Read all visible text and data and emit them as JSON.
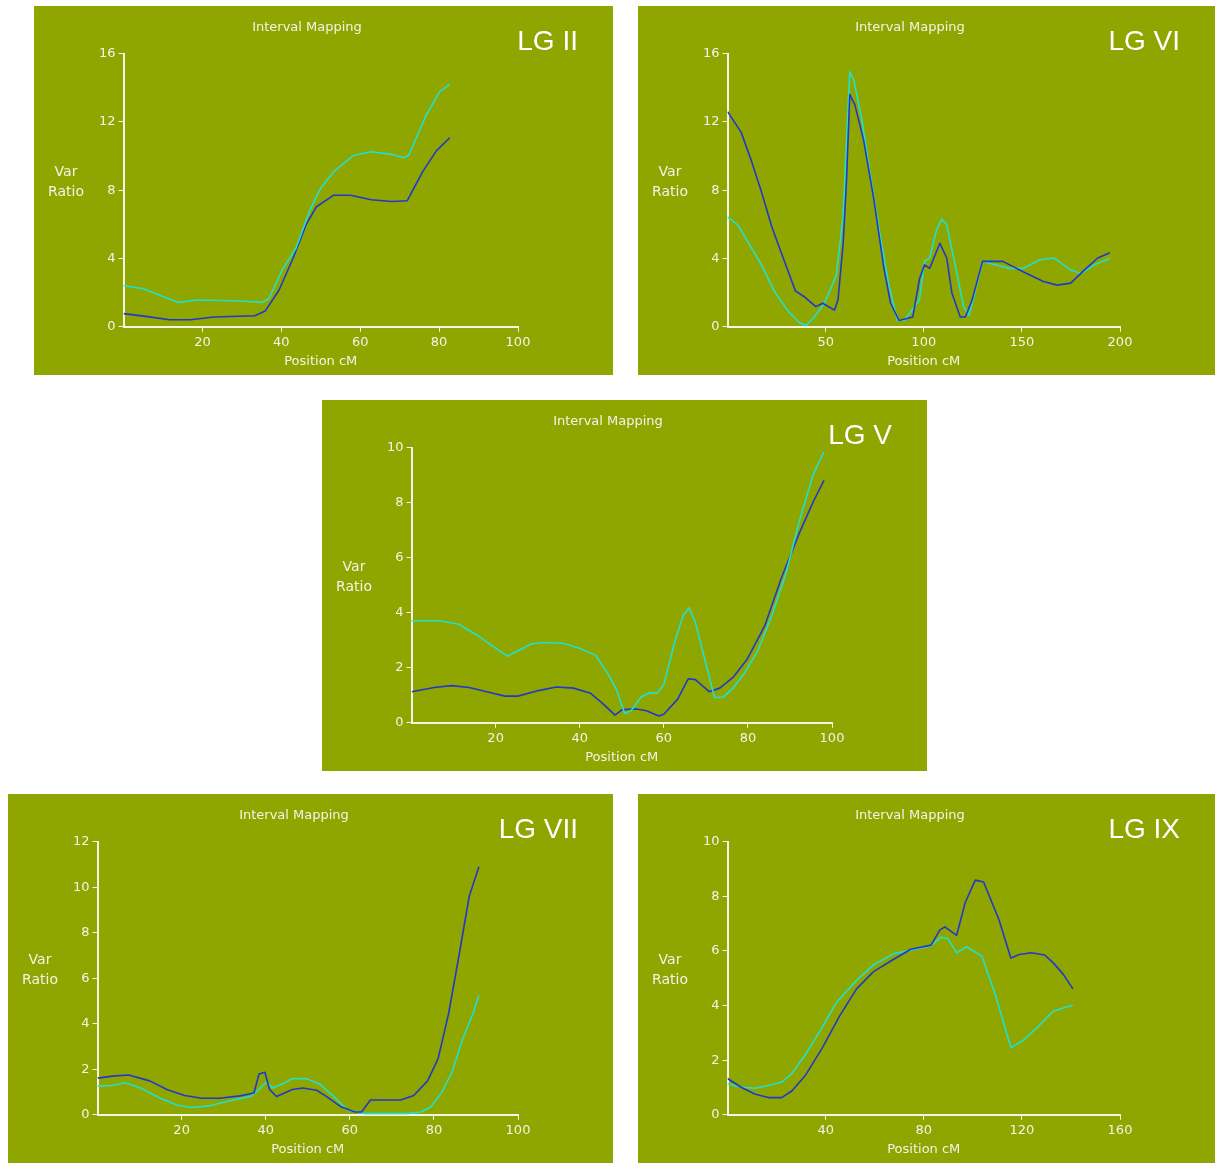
{
  "chart_data": [
    {
      "type": "line",
      "title": "Interval Mapping",
      "xlabel": "Position cM",
      "ylabel": "Var Ratio",
      "annotations": [
        "LG II"
      ],
      "xlim": [
        0,
        100
      ],
      "xticks": [
        20,
        40,
        60,
        80,
        100
      ],
      "ylim": [
        0,
        16
      ],
      "yticks": [
        0,
        4,
        8,
        12,
        16
      ],
      "grid": false,
      "legend": false,
      "series": [
        {
          "color": "#22e0d0",
          "x": [
            0,
            4.8,
            13.9,
            18.6,
            28,
            35,
            36.8,
            40.3,
            43.7,
            47.2,
            49.8,
            53.2,
            58.4,
            62.8,
            68,
            71,
            72.3,
            76.6,
            80.1,
            82.7
          ],
          "values": [
            2.4,
            2.24,
            1.43,
            1.57,
            1.53,
            1.43,
            1.63,
            3.36,
            4.6,
            6.8,
            8.05,
            9.07,
            10.05,
            10.25,
            10.1,
            9.9,
            10.05,
            12.33,
            13.76,
            14.2
          ]
        },
        {
          "color": "#2238cc",
          "x": [
            0,
            5.6,
            11.7,
            16.9,
            23,
            33.3,
            35.9,
            39.4,
            42.9,
            46.3,
            48.9,
            53.2,
            57.5,
            62.8,
            68,
            71.9,
            75.8,
            79.3,
            82.7
          ],
          "values": [
            0.77,
            0.61,
            0.41,
            0.41,
            0.57,
            0.65,
            0.92,
            2.14,
            3.97,
            6.0,
            7.03,
            7.7,
            7.7,
            7.44,
            7.34,
            7.38,
            9.07,
            10.3,
            11.07
          ]
        }
      ]
    },
    {
      "type": "line",
      "title": "Interval Mapping",
      "xlabel": "Position cM",
      "ylabel": "Var Ratio",
      "annotations": [
        "LG VI"
      ],
      "xlim": [
        0,
        200
      ],
      "xticks": [
        50,
        100,
        150,
        200
      ],
      "ylim": [
        0,
        16
      ],
      "yticks": [
        0,
        4,
        8,
        12,
        16
      ],
      "grid": false,
      "legend": false,
      "series": [
        {
          "color": "#2238cc",
          "x": [
            0,
            6.9,
            12.1,
            17.3,
            22.5,
            27.7,
            34.6,
            39.8,
            45,
            48.5,
            54.5,
            56.3,
            58.9,
            60.6,
            62.3,
            64.9,
            69.3,
            74.5,
            79.7,
            83.1,
            87.4,
            94.4,
            97.8,
            100.4,
            103,
            108.2,
            111.7,
            114.3,
            118.6,
            121.2,
            124.7,
            129.9,
            140.3,
            150.6,
            161,
            168,
            174.9,
            181.8,
            188.7,
            194.8
          ],
          "values": [
            12.6,
            11.4,
            9.74,
            7.9,
            5.87,
            4.24,
            2.1,
            1.7,
            1.18,
            1.38,
            0.98,
            1.59,
            4.85,
            8.5,
            13.6,
            13,
            10.96,
            7.5,
            3.42,
            1.38,
            0.37,
            0.57,
            2.8,
            3.63,
            3.42,
            4.89,
            4.03,
            2.0,
            0.57,
            0.57,
            1.59,
            3.83,
            3.83,
            3.22,
            2.65,
            2.44,
            2.56,
            3.32,
            4.03,
            4.34
          ]
        },
        {
          "color": "#22e0d0",
          "x": [
            0,
            5.2,
            12.1,
            17.3,
            24.2,
            31.2,
            36.4,
            39.8,
            44.2,
            49.4,
            55.4,
            58.9,
            61,
            62.3,
            64.4,
            68.4,
            72.7,
            77.9,
            82.3,
            86.6,
            90,
            95.2,
            97.8,
            100.4,
            103,
            106.5,
            109.1,
            111.7,
            116,
            120.3,
            123,
            125.6,
            129.9,
            143.8,
            150.6,
            159.3,
            166.2,
            171.4,
            174.9,
            180.1,
            187,
            194.8
          ],
          "values": [
            6.42,
            5.97,
            4.64,
            3.63,
            2.0,
            0.88,
            0.27,
            0.06,
            0.57,
            1.38,
            3.01,
            6.48,
            11.77,
            14.93,
            14.42,
            12.18,
            8.92,
            5.25,
            2.4,
            0.37,
            0.37,
            1.18,
            1.59,
            3.83,
            4.03,
            5.66,
            6.31,
            5.97,
            3.63,
            1.18,
            0.67,
            1.79,
            3.83,
            3.42,
            3.42,
            3.93,
            4.03,
            3.63,
            3.32,
            3.12,
            3.63,
            4.0
          ]
        }
      ]
    },
    {
      "type": "line",
      "title": "Interval Mapping",
      "xlabel": "Position cM",
      "ylabel": "Var Ratio",
      "annotations": [
        "LG V"
      ],
      "xlim": [
        0,
        100
      ],
      "xticks": [
        20,
        40,
        60,
        80,
        100
      ],
      "ylim": [
        0,
        10
      ],
      "yticks": [
        0,
        2,
        4,
        6,
        8,
        10
      ],
      "grid": false,
      "legend": false,
      "series": [
        {
          "color": "#22e0d0",
          "x": [
            0,
            6.6,
            11.2,
            15.3,
            19.5,
            22.8,
            25.3,
            28.6,
            31.9,
            36,
            40.1,
            43.8,
            46.8,
            48.8,
            50.7,
            52.2,
            54.6,
            56.7,
            58.4,
            60,
            62.5,
            64.6,
            66,
            67.5,
            69.6,
            72.1,
            74.2,
            76.6,
            79.1,
            82.4,
            85.7,
            89,
            92.4,
            95.6,
            98.1
          ],
          "values": [
            3.71,
            3.71,
            3.58,
            3.21,
            2.77,
            2.42,
            2.62,
            2.87,
            2.92,
            2.89,
            2.7,
            2.45,
            1.76,
            1.19,
            0.34,
            0.44,
            0.94,
            1.09,
            1.07,
            1.38,
            2.89,
            3.9,
            4.18,
            3.65,
            2.39,
            0.91,
            0.94,
            1.28,
            1.79,
            2.64,
            3.9,
            5.41,
            7.42,
            9.06,
            9.84
          ]
        },
        {
          "color": "#2238cc",
          "x": [
            0,
            5.4,
            9.5,
            13.7,
            17.9,
            22.2,
            25.3,
            30.2,
            34.4,
            38.5,
            42.6,
            45.1,
            48.4,
            50.1,
            53.4,
            55.9,
            58.8,
            60,
            63.3,
            65.8,
            67.5,
            70.8,
            73.3,
            76.6,
            79.9,
            84,
            88,
            92.3,
            95.6,
            98.1
          ],
          "values": [
            1.13,
            1.28,
            1.35,
            1.28,
            1.13,
            0.97,
            0.97,
            1.17,
            1.3,
            1.26,
            1.07,
            0.75,
            0.28,
            0.48,
            0.5,
            0.44,
            0.25,
            0.31,
            0.86,
            1.6,
            1.57,
            1.13,
            1.26,
            1.67,
            2.33,
            3.52,
            5.28,
            6.92,
            8.05,
            8.81
          ]
        }
      ]
    },
    {
      "type": "line",
      "title": "Interval Mapping",
      "xlabel": "Position cM",
      "ylabel": "Var Ratio",
      "annotations": [
        "LG VII"
      ],
      "xlim": [
        0,
        100
      ],
      "xticks": [
        20,
        40,
        60,
        80,
        100
      ],
      "ylim": [
        0,
        12
      ],
      "yticks": [
        0,
        2,
        4,
        6,
        8,
        10,
        12
      ],
      "grid": false,
      "legend": false,
      "series": [
        {
          "color": "#2238cc",
          "x": [
            0,
            4.1,
            7.4,
            12.4,
            16.5,
            20.7,
            24.8,
            28.9,
            33.9,
            37.2,
            38.4,
            39.8,
            40.9,
            42.6,
            46.3,
            48.8,
            52.1,
            54.5,
            57.9,
            61.2,
            62.8,
            64.9,
            72.1,
            75.2,
            78.5,
            81,
            83.5,
            86,
            88.4,
            90.7
          ],
          "values": [
            1.61,
            1.71,
            1.75,
            1.49,
            1.11,
            0.85,
            0.73,
            0.73,
            0.83,
            0.96,
            1.79,
            1.87,
            1.11,
            0.8,
            1.11,
            1.18,
            1.08,
            0.8,
            0.35,
            0.12,
            0.12,
            0.65,
            0.65,
            0.85,
            1.49,
            2.47,
            4.45,
            7.03,
            9.6,
            10.9
          ]
        },
        {
          "color": "#22e0d0",
          "x": [
            0,
            3.3,
            6.6,
            10.7,
            14.9,
            19,
            22.3,
            26.4,
            32.2,
            36.4,
            38.4,
            40.1,
            41.7,
            44.6,
            46.3,
            49.6,
            52.9,
            56.2,
            59.5,
            63.6,
            73.6,
            76.9,
            79.3,
            81.8,
            84.3,
            86.8,
            89.3,
            90.7
          ],
          "values": [
            1.26,
            1.29,
            1.41,
            1.14,
            0.73,
            0.42,
            0.32,
            0.39,
            0.65,
            0.8,
            1.11,
            1.44,
            1.18,
            1.41,
            1.59,
            1.59,
            1.34,
            0.8,
            0.2,
            0.05,
            0.05,
            0.12,
            0.35,
            0.96,
            1.87,
            3.31,
            4.45,
            5.25
          ]
        }
      ]
    },
    {
      "type": "line",
      "title": "Interval Mapping",
      "xlabel": "Position cM",
      "ylabel": "Var Ratio",
      "annotations": [
        "LG IX"
      ],
      "xlim": [
        0,
        160
      ],
      "xticks": [
        40,
        80,
        120,
        160
      ],
      "ylim": [
        0,
        10
      ],
      "yticks": [
        0,
        2,
        4,
        6,
        8,
        10
      ],
      "grid": false,
      "legend": false,
      "series": [
        {
          "color": "#2238cc",
          "x": [
            0,
            5.5,
            11.1,
            16.6,
            22.1,
            26.3,
            31.8,
            38.7,
            45.6,
            52.6,
            59.5,
            66.4,
            74.7,
            83,
            86.5,
            88.6,
            93.4,
            96.9,
            101,
            104.4,
            110.7,
            115.5,
            119,
            123.8,
            129.3,
            132.8,
            136.9,
            140.8
          ],
          "values": [
            1.33,
            1.01,
            0.76,
            0.63,
            0.63,
            0.88,
            1.45,
            2.46,
            3.6,
            4.61,
            5.24,
            5.62,
            6.06,
            6.21,
            6.76,
            6.88,
            6.57,
            7.77,
            8.59,
            8.52,
            7.13,
            5.74,
            5.87,
            5.93,
            5.85,
            5.56,
            5.14,
            4.61
          ]
        },
        {
          "color": "#22e0d0",
          "x": [
            0,
            5.5,
            11.1,
            18,
            22.1,
            26.3,
            31.8,
            38.7,
            44.3,
            52.6,
            59.5,
            67.8,
            74.7,
            83,
            87.1,
            89.9,
            93.4,
            97.5,
            103.7,
            109.3,
            115.5,
            120.3,
            125.9,
            132.8,
            136.9,
            140.8
          ],
          "values": [
            1.14,
            1.01,
            0.97,
            1.1,
            1.2,
            1.52,
            2.21,
            3.22,
            4.1,
            4.92,
            5.49,
            5.9,
            6.02,
            6.19,
            6.5,
            6.44,
            5.93,
            6.15,
            5.81,
            4.36,
            2.46,
            2.71,
            3.16,
            3.79,
            3.91,
            4.01
          ]
        }
      ]
    }
  ]
}
